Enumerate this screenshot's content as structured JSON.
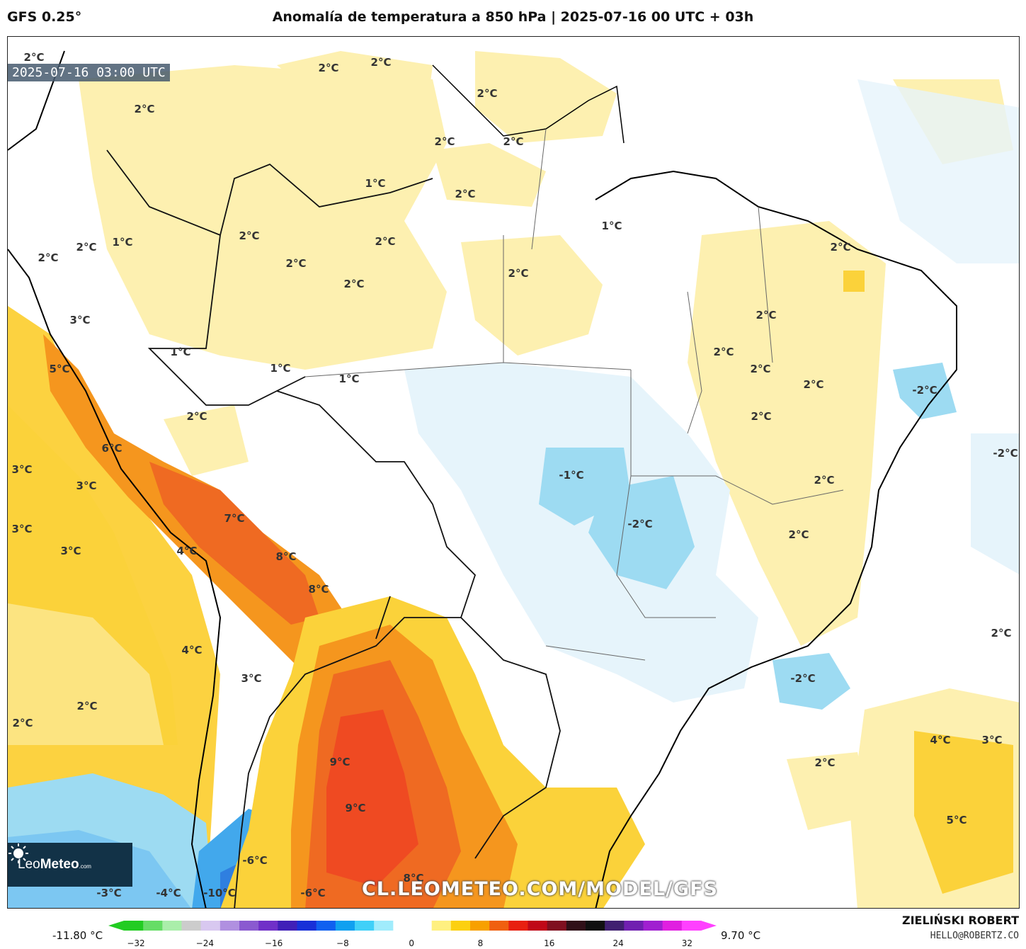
{
  "header": {
    "model": "GFS 0.25°",
    "title": "Anomalía de temperatura a 850 hPa | 2025-07-16 00 UTC + 03h"
  },
  "map": {
    "valid_time": "2025-07-16 03:00 UTC",
    "watermark": "CL.LEOMETEO.COM/MODEL/GFS",
    "logo_brand": "Leo",
    "logo_brand_bold": "Meteo",
    "logo_suffix": ".com",
    "labels": [
      "2°C",
      "2°C",
      "2°C",
      "2°C",
      "2°C",
      "2°C",
      "2°C",
      "1°C",
      "2°C",
      "1°C",
      "2°C",
      "2°C",
      "1°C",
      "2°C",
      "2°C",
      "2°C",
      "2°C",
      "2°C",
      "3°C",
      "2°C",
      "1°C",
      "5°C",
      "1°C",
      "1°C",
      "2°C",
      "2°C",
      "2°C",
      "2°C",
      "-2°C",
      "2°C",
      "6°C",
      "3°C",
      "3°C",
      "-1°C",
      "2°C",
      "-2°C",
      "3°C",
      "7°C",
      "3°C",
      "4°C",
      "8°C",
      "2°C",
      "8°C",
      "-2°C",
      "4°C",
      "3°C",
      "2°C",
      "2°C",
      "2°C",
      "4°C",
      "3°C",
      "9°C",
      "9°C",
      "5°C",
      "-6°C",
      "8°C",
      "-3°C",
      "-4°C",
      "-10°C",
      "-6°C",
      "-2°C",
      "2°C",
      "2°C"
    ],
    "colors": {
      "warm_light": "#fdf0b0",
      "warm": "#fbd23a",
      "orange": "#f5961e",
      "red": "#ef4a22",
      "cool_light": "#e6f4fb",
      "cool": "#9ddbf2",
      "cold": "#42a8ec"
    }
  },
  "colorbar": {
    "min_label": "-11.80 °C",
    "max_label": "9.70 °C",
    "ticks": [
      "−32",
      "−24",
      "−16",
      "−8",
      "0",
      "8",
      "16",
      "24",
      "32"
    ],
    "stops": [
      "#22cc22",
      "#66dd66",
      "#aaeeaa",
      "#cccccc",
      "#d8c8f0",
      "#b090e0",
      "#8a5ad0",
      "#7030c8",
      "#4020b8",
      "#1830d8",
      "#1060f0",
      "#10a0f0",
      "#40d0f8",
      "#a0ecfc",
      "#ffffff",
      "#ffffff",
      "#fff080",
      "#fcd010",
      "#f8a000",
      "#f06010",
      "#e82010",
      "#c00818",
      "#801020",
      "#301018",
      "#101010",
      "#402070",
      "#7020b0",
      "#a020d0",
      "#e020e0",
      "#ff40ff"
    ]
  },
  "author": {
    "name": "ZIELIŃSKI ROBERT",
    "email": "HELLO@ROBERTZ.CO"
  }
}
